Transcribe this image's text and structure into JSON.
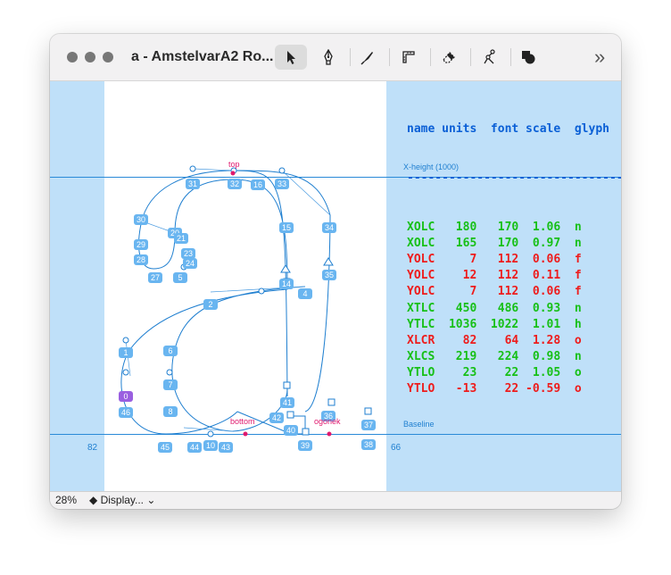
{
  "window": {
    "title": "a - AmstelvarA2 Ro..."
  },
  "toolbar": {
    "tools": [
      "pointer-tool",
      "pen-tool",
      "knife-tool",
      "ruler-tool",
      "eraser-tool",
      "skeleton-tool",
      "shapes-tool"
    ],
    "more": "»"
  },
  "guides": {
    "xheight_label": "X-height (1000)",
    "baseline_label": "Baseline",
    "left_sidebearing": "82",
    "right_sidebearing": "66"
  },
  "anchors": {
    "top": "top",
    "bottom": "bottom",
    "ogonek": "ogonek"
  },
  "points": [
    "0",
    "1",
    "2",
    "4",
    "5",
    "6",
    "7",
    "8",
    "10",
    "14",
    "15",
    "16",
    "20",
    "21",
    "23",
    "24",
    "27",
    "28",
    "29",
    "30",
    "31",
    "32",
    "33",
    "34",
    "35",
    "36",
    "37",
    "38",
    "39",
    "40",
    "41",
    "42",
    "43",
    "44",
    "45",
    "46"
  ],
  "table": {
    "header": "name units  font scale  glyph",
    "divider": "--------------------------------",
    "rows": [
      {
        "text": "XOLC   180   170  1.06  n",
        "color": "#17c017"
      },
      {
        "text": "XOLC   165   170  0.97  n",
        "color": "#17c017"
      },
      {
        "text": "YOLC     7   112  0.06  f",
        "color": "#ee1c1c"
      },
      {
        "text": "YOLC    12   112  0.11  f",
        "color": "#ee1c1c"
      },
      {
        "text": "YOLC     7   112  0.06  f",
        "color": "#ee1c1c"
      },
      {
        "text": "XTLC   450   486  0.93  n",
        "color": "#17c017"
      },
      {
        "text": "YTLC  1036  1022  1.01  h",
        "color": "#17c017"
      },
      {
        "text": "XLCR    82    64  1.28  o",
        "color": "#ee1c1c"
      },
      {
        "text": "XLCS   219   224  0.98  n",
        "color": "#17c017"
      },
      {
        "text": "YTLO    23    22  1.05  o",
        "color": "#17c017"
      },
      {
        "text": "YTLO   -13    22 -0.59  o",
        "color": "#ee1c1c"
      }
    ],
    "header_color": "#0a5fd6"
  },
  "status": {
    "zoom": "28%",
    "display": "◆ Display...",
    "display_chevron": "⌄"
  }
}
